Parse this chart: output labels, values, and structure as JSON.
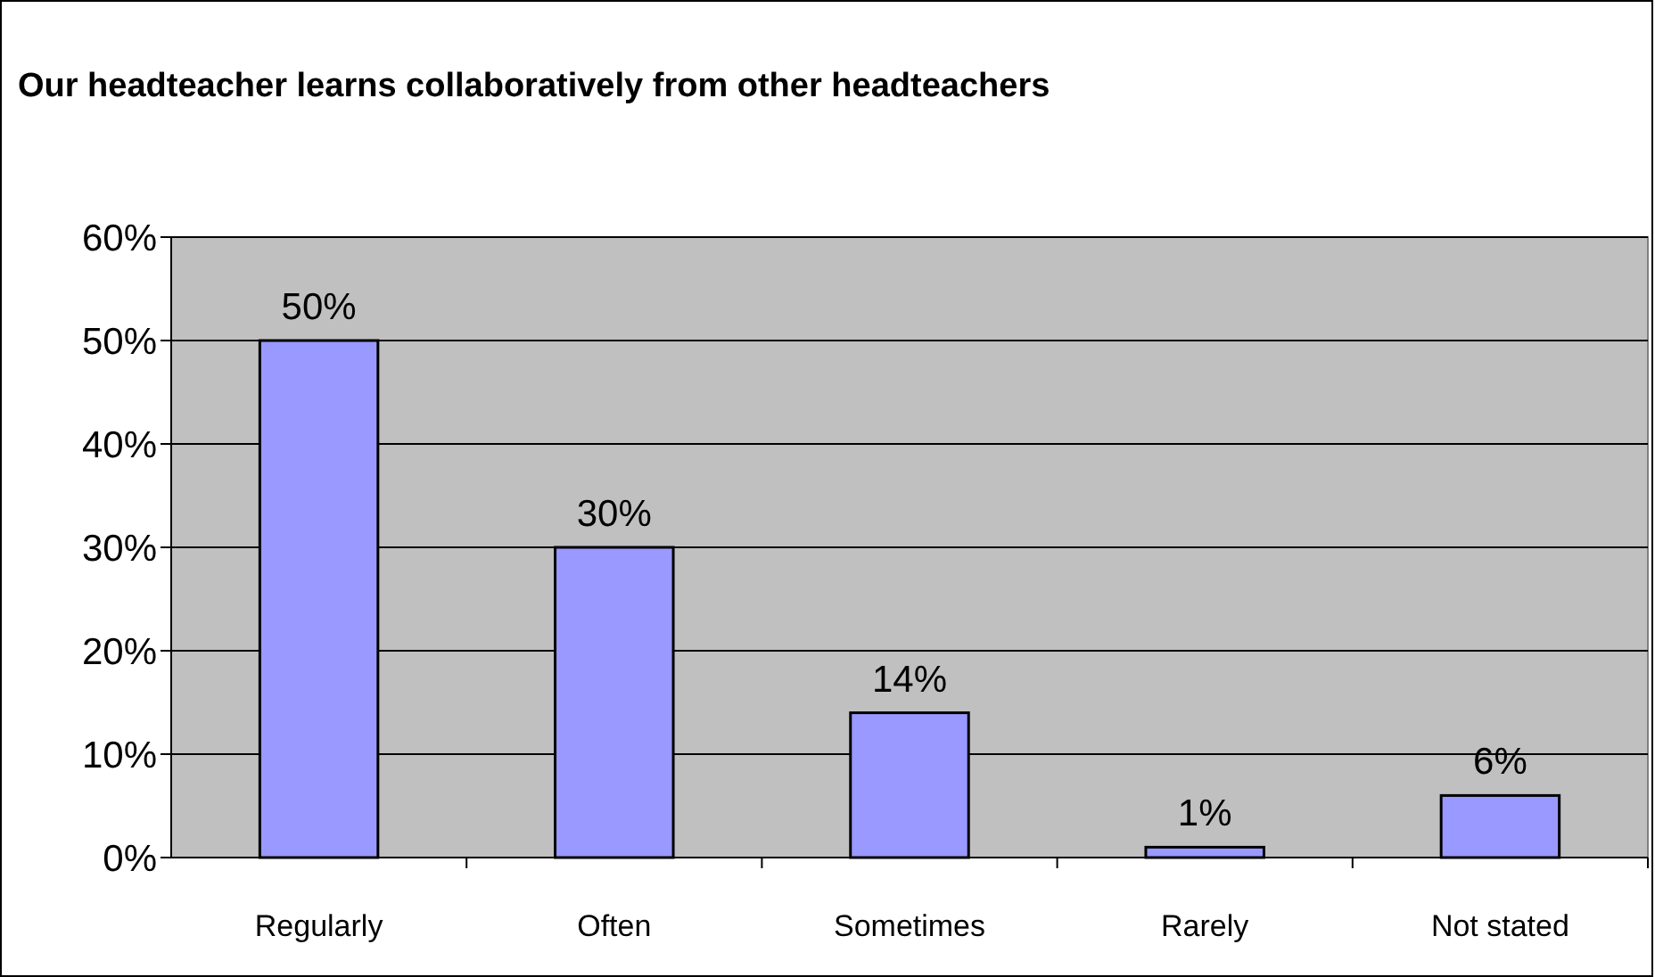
{
  "chart_data": {
    "type": "bar",
    "title": "Our headteacher learns collaboratively from other headteachers",
    "categories": [
      "Regularly",
      "Often",
      "Sometimes",
      "Rarely",
      "Not stated"
    ],
    "values": [
      50,
      30,
      14,
      1,
      6
    ],
    "value_labels": [
      "50%",
      "30%",
      "14%",
      "1%",
      "6%"
    ],
    "color": "#9999ff",
    "ylim": [
      0,
      60
    ],
    "yticks": [
      {
        "value": 0,
        "label": "0%"
      },
      {
        "value": 10,
        "label": "10%"
      },
      {
        "value": 20,
        "label": "20%"
      },
      {
        "value": 30,
        "label": "30%"
      },
      {
        "value": 40,
        "label": "40%"
      },
      {
        "value": 50,
        "label": "50%"
      },
      {
        "value": 60,
        "label": "60%"
      }
    ],
    "grid": "y"
  }
}
